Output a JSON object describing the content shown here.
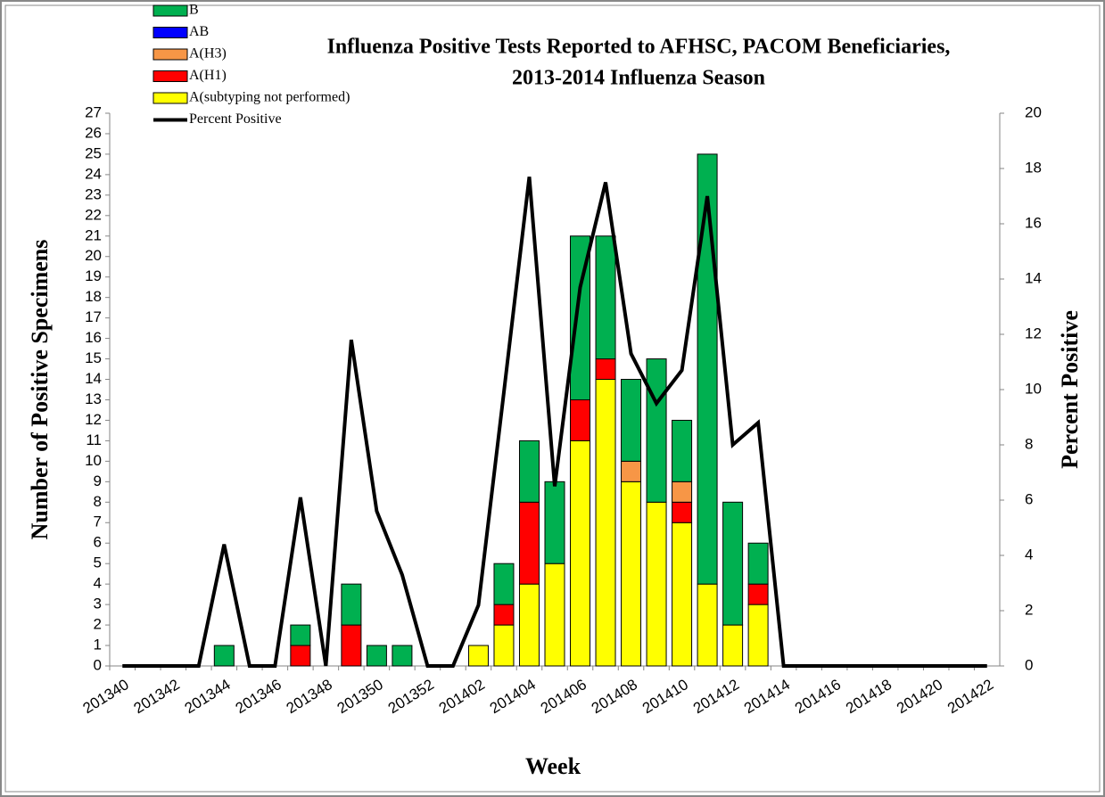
{
  "chart_data": {
    "type": "bar",
    "title": [
      "Influenza Positive Tests Reported to AFHSC, PACOM Beneficiaries,",
      "2013-2014 Influenza Season"
    ],
    "x_label": "Week",
    "y_label": "Number of Positive Specimens",
    "y2_label": "Percent Positive",
    "stacked": true,
    "categories": [
      "201340",
      null,
      "201342",
      null,
      "201344",
      null,
      "201346",
      null,
      "201348",
      null,
      "201350",
      null,
      "201352",
      null,
      "201402",
      null,
      "201404",
      null,
      "201406",
      null,
      "201408",
      null,
      "201410",
      null,
      "201412",
      null,
      "201414",
      null,
      "201416",
      null,
      "201418",
      null,
      "201420",
      null,
      "201422"
    ],
    "series": [
      {
        "name": "B",
        "color": "#00b050",
        "values": [
          0,
          0,
          0,
          0,
          1,
          0,
          0,
          1,
          0,
          2,
          1,
          1,
          0,
          0,
          0,
          2,
          3,
          4,
          8,
          6,
          4,
          7,
          3,
          21,
          6,
          2,
          0,
          0,
          0,
          0,
          0,
          0,
          0,
          0,
          0
        ]
      },
      {
        "name": "AB",
        "color": "#0000ff",
        "values": [
          0,
          0,
          0,
          0,
          0,
          0,
          0,
          0,
          0,
          0,
          0,
          0,
          0,
          0,
          0,
          0,
          0,
          0,
          0,
          0,
          0,
          0,
          0,
          0,
          0,
          0,
          0,
          0,
          0,
          0,
          0,
          0,
          0,
          0,
          0
        ]
      },
      {
        "name": "A(H3)",
        "color": "#f79646",
        "values": [
          0,
          0,
          0,
          0,
          0,
          0,
          0,
          0,
          0,
          0,
          0,
          0,
          0,
          0,
          0,
          0,
          0,
          0,
          0,
          0,
          1,
          0,
          1,
          0,
          0,
          0,
          0,
          0,
          0,
          0,
          0,
          0,
          0,
          0,
          0
        ]
      },
      {
        "name": "A(H1)",
        "color": "#ff0000",
        "values": [
          0,
          0,
          0,
          0,
          0,
          0,
          0,
          1,
          0,
          2,
          0,
          0,
          0,
          0,
          0,
          1,
          4,
          0,
          2,
          1,
          0,
          0,
          1,
          0,
          0,
          1,
          0,
          0,
          0,
          0,
          0,
          0,
          0,
          0,
          0
        ]
      },
      {
        "name": "A(subtyping not performed)",
        "color": "#ffff00",
        "values": [
          0,
          0,
          0,
          0,
          0,
          0,
          0,
          0,
          0,
          0,
          0,
          0,
          0,
          0,
          1,
          2,
          4,
          5,
          11,
          14,
          9,
          8,
          7,
          4,
          2,
          3,
          0,
          0,
          0,
          0,
          0,
          0,
          0,
          0,
          0
        ]
      },
      {
        "name": "Percent Positive",
        "color": "#000000",
        "type": "line",
        "axis": "y2",
        "values": [
          0,
          0,
          0,
          0,
          4.4,
          0,
          0,
          6.1,
          0,
          11.8,
          5.6,
          3.3,
          0,
          0,
          2.2,
          9.9,
          17.7,
          6.5,
          13.7,
          17.5,
          11.3,
          9.5,
          10.7,
          17.0,
          8.0,
          8.8,
          0,
          0,
          0,
          0,
          0,
          0,
          0,
          0,
          0
        ]
      }
    ],
    "ylim": [
      0,
      27
    ],
    "yticks": [
      0,
      1,
      2,
      3,
      4,
      5,
      6,
      7,
      8,
      9,
      10,
      11,
      12,
      13,
      14,
      15,
      16,
      17,
      18,
      19,
      20,
      21,
      22,
      23,
      24,
      25,
      26,
      27
    ],
    "y2lim": [
      0,
      20
    ],
    "y2ticks": [
      0,
      2,
      4,
      6,
      8,
      10,
      12,
      14,
      16,
      18,
      20
    ],
    "grid": false,
    "legend": "top-left"
  }
}
